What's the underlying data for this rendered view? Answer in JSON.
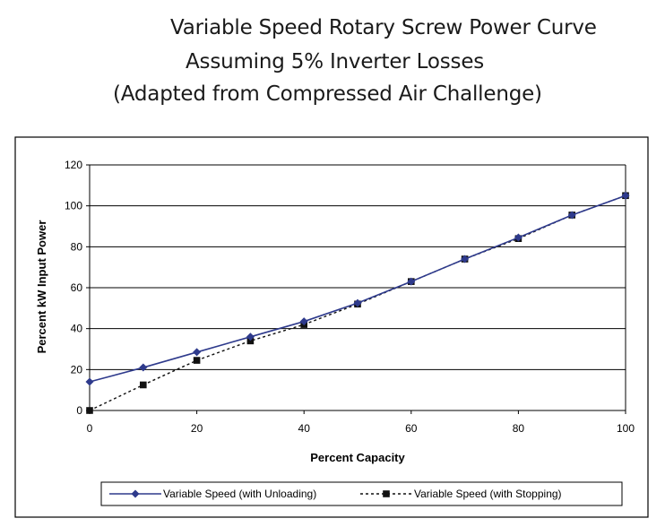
{
  "title_lines": [
    "Variable Speed Rotary Screw Power Curve",
    "Assuming 5% Inverter Losses",
    "(Adapted from Compressed Air Challenge)"
  ],
  "chart_data": {
    "type": "line",
    "title": "Variable Speed Rotary Screw Power Curve",
    "xlabel": "Percent Capacity",
    "ylabel": "Percent kW Input Power",
    "xlim": [
      0,
      100
    ],
    "ylim": [
      0,
      120
    ],
    "x_ticks": [
      "0",
      "20",
      "40",
      "60",
      "80",
      "100"
    ],
    "y_ticks": [
      "0",
      "20",
      "40",
      "60",
      "80",
      "100",
      "120"
    ],
    "grid": "horizontal",
    "legend_position": "bottom",
    "series": [
      {
        "name": "Variable Speed (with Unloading)",
        "color": "#2e3a8c",
        "line_style": "solid",
        "marker": "diamond",
        "x": [
          0,
          10,
          20,
          30,
          40,
          50,
          60,
          70,
          80,
          90,
          100
        ],
        "y": [
          14,
          21,
          28.5,
          36,
          43.5,
          52.5,
          63,
          74,
          84.5,
          95.5,
          105
        ]
      },
      {
        "name": "Variable Speed (with Stopping)",
        "color": "#111111",
        "line_style": "dashed",
        "marker": "square",
        "x": [
          0,
          10,
          20,
          30,
          40,
          50,
          60,
          70,
          80,
          90,
          100
        ],
        "y": [
          0,
          12.5,
          24.5,
          34,
          42,
          52,
          63,
          74,
          84,
          95.5,
          105
        ]
      }
    ]
  }
}
